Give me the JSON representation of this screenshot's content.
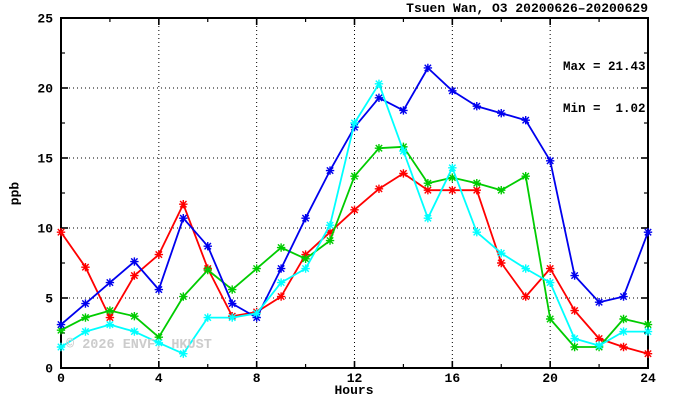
{
  "page": {
    "background": "#ffffff"
  },
  "chart_data": {
    "type": "line",
    "title": "Tsuen Wan, O3 20200626–20200629",
    "xlabel": "Hours",
    "ylabel": "ppb",
    "xlim": [
      0,
      24
    ],
    "ylim": [
      0,
      25
    ],
    "x_major_ticks": [
      0,
      4,
      8,
      12,
      16,
      20,
      24
    ],
    "x_minor_ticks": [
      2,
      6,
      10,
      14,
      18,
      22
    ],
    "y_major_ticks": [
      0,
      5,
      10,
      15,
      20,
      25
    ],
    "y_minor_ticks": [
      2.5,
      7.5,
      12.5,
      17.5,
      22.5
    ],
    "grid": {
      "style": "dotted",
      "x_values": [
        4,
        8,
        12,
        16,
        20
      ],
      "y_values": [
        5,
        10,
        15,
        20
      ]
    },
    "legend": "none",
    "x": [
      0,
      1,
      2,
      3,
      4,
      5,
      6,
      7,
      8,
      9,
      10,
      11,
      12,
      13,
      14,
      15,
      16,
      17,
      18,
      19,
      20,
      21,
      22,
      23,
      24
    ],
    "series": [
      {
        "name": "red",
        "color": "#ff0000",
        "marker": "star",
        "values": [
          9.7,
          7.2,
          3.6,
          6.6,
          8.1,
          11.7,
          7.1,
          3.7,
          4.0,
          5.1,
          8.1,
          9.7,
          11.3,
          12.8,
          13.9,
          12.7,
          12.7,
          12.7,
          7.5,
          5.1,
          7.1,
          4.1,
          2.1,
          1.5,
          1.02
        ]
      },
      {
        "name": "green",
        "color": "#00cc00",
        "marker": "star",
        "values": [
          2.7,
          3.6,
          4.1,
          3.7,
          2.2,
          5.1,
          7.0,
          5.6,
          7.1,
          8.6,
          7.8,
          9.1,
          13.7,
          15.7,
          15.8,
          13.2,
          13.6,
          13.2,
          12.7,
          13.7,
          3.5,
          1.5,
          1.5,
          3.5,
          3.1
        ]
      },
      {
        "name": "blue",
        "color": "#0000ee",
        "marker": "star",
        "values": [
          3.1,
          4.6,
          6.1,
          7.6,
          5.6,
          10.7,
          8.7,
          4.6,
          3.6,
          7.1,
          10.7,
          14.1,
          17.2,
          19.3,
          18.4,
          21.43,
          19.8,
          18.7,
          18.2,
          17.7,
          14.8,
          6.6,
          4.7,
          5.1,
          9.7
        ]
      },
      {
        "name": "cyan",
        "color": "#00ffff",
        "marker": "star",
        "values": [
          1.5,
          2.6,
          3.1,
          2.6,
          1.8,
          1.02,
          3.6,
          3.6,
          3.9,
          6.1,
          7.1,
          10.2,
          17.5,
          20.3,
          15.5,
          10.7,
          14.3,
          9.7,
          8.2,
          7.1,
          6.1,
          2.1,
          1.6,
          2.6,
          2.6
        ]
      }
    ],
    "annotations": {
      "max_label": "Max = 21.43",
      "min_label": "Min =  1.02"
    }
  },
  "watermark": {
    "text": "© 2026 ENVF, HKUST",
    "color": "#cccccc"
  }
}
